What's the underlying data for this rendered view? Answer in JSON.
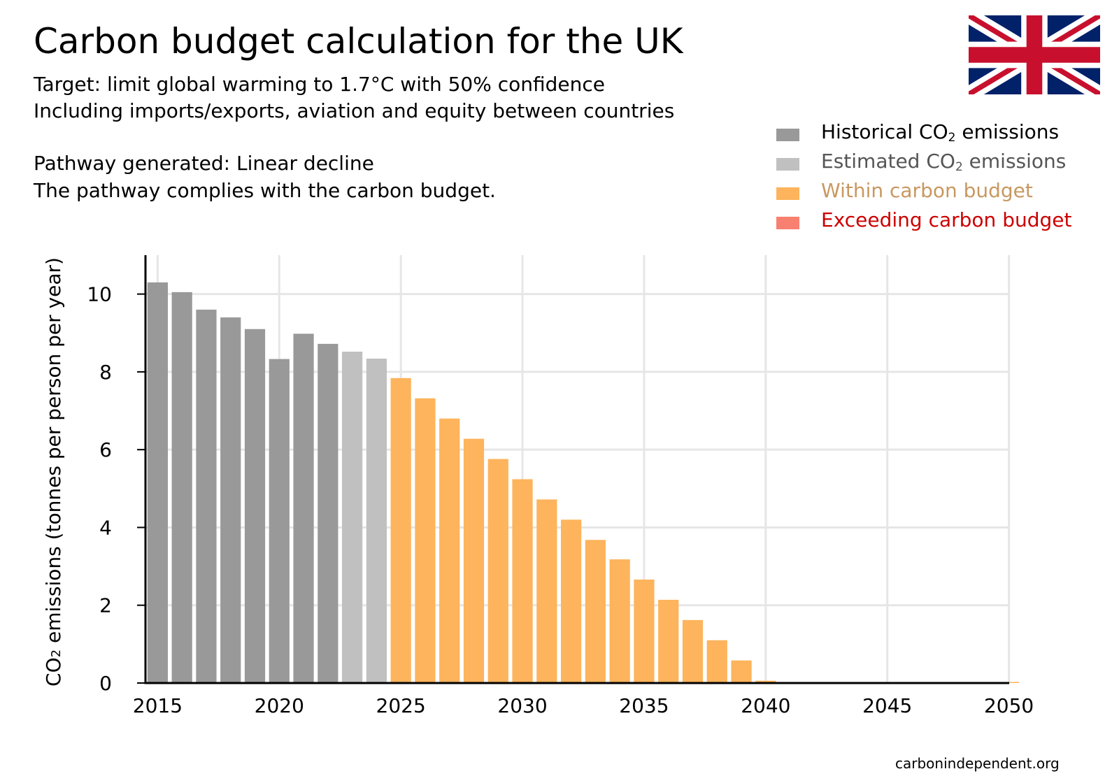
{
  "title": "Carbon budget calculation for the UK",
  "subtitle_lines": {
    "target": "Target: limit global warming to 1.7°C with 50% confidence",
    "scope": "Including imports/exports, aviation and equity between countries",
    "pathway": "Pathway generated: Linear decline",
    "compliance": "The pathway complies with the carbon budget."
  },
  "legend": [
    {
      "pre": "Historical CO",
      "sub": "2",
      "post": " emissions",
      "color": "#999999",
      "text_color": "#000000"
    },
    {
      "pre": "Estimated CO",
      "sub": "2",
      "post": " emissions",
      "color": "#c0c0c0",
      "text_color": "#555555"
    },
    {
      "pre": "Within carbon budget",
      "sub": "",
      "post": "",
      "color": "#fdb45c",
      "text_color": "#c89860"
    },
    {
      "pre": "Exceeding carbon budget",
      "sub": "",
      "post": "",
      "color": "#f88070",
      "text_color": "#cc0000"
    }
  ],
  "flag_icon": "uk-flag-icon",
  "source": "carbonindependent.org",
  "chart_data": {
    "type": "bar",
    "title": "Carbon budget calculation for the UK",
    "xlabel": "",
    "ylabel_parts": {
      "pre": "CO",
      "sub": "2",
      "post": " emissions (tonnes per person per year)"
    },
    "ylim": [
      0,
      11
    ],
    "xlim": [
      2014.5,
      2050.5
    ],
    "y_ticks": [
      0,
      2,
      4,
      6,
      8,
      10
    ],
    "x_ticks": [
      2015,
      2020,
      2025,
      2030,
      2035,
      2040,
      2045,
      2050
    ],
    "series": [
      {
        "name": "Historical CO2 emissions",
        "color": "#999999",
        "x": [
          2015,
          2016,
          2017,
          2018,
          2019,
          2020,
          2021,
          2022
        ],
        "values": [
          10.3,
          10.05,
          9.6,
          9.4,
          9.1,
          8.33,
          8.98,
          8.72
        ]
      },
      {
        "name": "Estimated CO2 emissions",
        "color": "#c0c0c0",
        "x": [
          2023,
          2024
        ],
        "values": [
          8.52,
          8.34
        ]
      },
      {
        "name": "Within carbon budget",
        "color": "#fdb45c",
        "x": [
          2025,
          2026,
          2027,
          2028,
          2029,
          2030,
          2031,
          2032,
          2033,
          2034,
          2035,
          2036,
          2037,
          2038,
          2039,
          2040,
          2041,
          2042,
          2043,
          2044,
          2045,
          2046,
          2047,
          2048,
          2049,
          2050
        ],
        "values": [
          7.84,
          7.32,
          6.8,
          6.28,
          5.76,
          5.24,
          4.72,
          4.2,
          3.68,
          3.18,
          2.66,
          2.14,
          1.62,
          1.1,
          0.58,
          0.06,
          0,
          0,
          0,
          0,
          0,
          0,
          0,
          0,
          0,
          0
        ]
      },
      {
        "name": "Exceeding carbon budget",
        "color": "#f88070",
        "x": [],
        "values": []
      }
    ]
  }
}
